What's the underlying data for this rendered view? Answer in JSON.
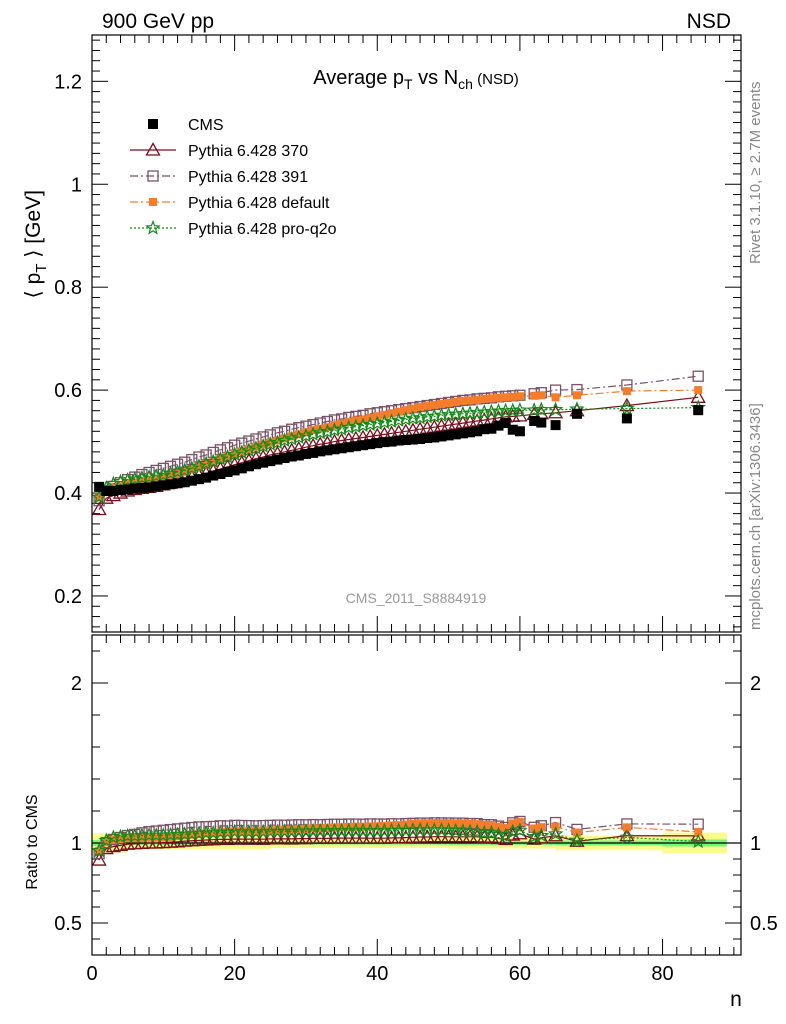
{
  "header": {
    "left": "900 GeV pp",
    "right": "NSD"
  },
  "side_labels": {
    "rivet": "Rivet 3.1.10, ≥ 2.7M events",
    "mcplots": "mcplots.cern.ch [arXiv:1306.3436]"
  },
  "chart_data": [
    {
      "type": "scatter",
      "title": "Average p_T vs N_ch (NSD)",
      "title_parts": {
        "a": "Average p",
        "a_sub": "T",
        "b": " vs N",
        "b_sub": "ch",
        "c": " (NSD)"
      },
      "ylabel": "⟨ p_T ⟩ [GeV]",
      "ylabel_parts": {
        "pre": "⟨ p",
        "sub": "T",
        "post": " ⟩ [GeV]"
      },
      "xlim": [
        0,
        91
      ],
      "ylim": [
        0.13,
        1.29
      ],
      "yticks": [
        0.2,
        0.4,
        0.6,
        0.8,
        1,
        1.2
      ],
      "ytick_labels": [
        "0.2",
        "0.4",
        "0.6",
        "0.8",
        "1",
        "1.2"
      ],
      "watermark": "CMS_2011_S8884919",
      "legend": "top-left",
      "series": [
        {
          "name": "CMS",
          "color": "#000000",
          "marker": "filled-square",
          "x": [
            1,
            2,
            3,
            4,
            5,
            6,
            7,
            8,
            9,
            10,
            11,
            12,
            13,
            14,
            15,
            16,
            17,
            18,
            19,
            20,
            21,
            22,
            23,
            24,
            25,
            26,
            27,
            28,
            29,
            30,
            31,
            32,
            33,
            34,
            35,
            36,
            37,
            38,
            39,
            40,
            41,
            42,
            43,
            44,
            45,
            46,
            47,
            48,
            49,
            50,
            51,
            52,
            53,
            54,
            55,
            56,
            57,
            58,
            59,
            60,
            62,
            63,
            65,
            68,
            75,
            85
          ],
          "y": [
            0.412,
            0.404,
            0.404,
            0.406,
            0.407,
            0.409,
            0.41,
            0.411,
            0.413,
            0.415,
            0.417,
            0.419,
            0.421,
            0.424,
            0.427,
            0.43,
            0.434,
            0.437,
            0.441,
            0.444,
            0.448,
            0.452,
            0.456,
            0.459,
            0.462,
            0.465,
            0.468,
            0.471,
            0.473,
            0.476,
            0.478,
            0.481,
            0.483,
            0.485,
            0.487,
            0.489,
            0.491,
            0.493,
            0.495,
            0.497,
            0.499,
            0.5,
            0.502,
            0.503,
            0.504,
            0.505,
            0.507,
            0.508,
            0.51,
            0.512,
            0.514,
            0.516,
            0.518,
            0.52,
            0.524,
            0.525,
            0.531,
            0.536,
            0.523,
            0.52,
            0.54,
            0.537,
            0.532,
            0.554,
            0.545,
            0.561
          ]
        },
        {
          "name": "Pythia 6.428 370",
          "color": "#7b0f1e",
          "marker": "open-triangle",
          "line": "solid",
          "x": [
            1,
            2,
            3,
            4,
            5,
            6,
            7,
            8,
            9,
            10,
            11,
            12,
            13,
            14,
            15,
            16,
            17,
            18,
            19,
            20,
            21,
            22,
            23,
            24,
            25,
            26,
            27,
            28,
            29,
            30,
            31,
            32,
            33,
            34,
            35,
            36,
            37,
            38,
            39,
            40,
            41,
            42,
            43,
            44,
            45,
            46,
            47,
            48,
            49,
            50,
            51,
            52,
            53,
            54,
            55,
            56,
            57,
            58,
            59,
            60,
            62,
            63,
            65,
            68,
            75,
            85
          ],
          "y": [
            0.368,
            0.39,
            0.395,
            0.4,
            0.404,
            0.407,
            0.409,
            0.411,
            0.413,
            0.416,
            0.419,
            0.422,
            0.426,
            0.43,
            0.434,
            0.438,
            0.443,
            0.447,
            0.451,
            0.455,
            0.459,
            0.463,
            0.467,
            0.47,
            0.474,
            0.477,
            0.48,
            0.483,
            0.486,
            0.489,
            0.492,
            0.495,
            0.497,
            0.5,
            0.502,
            0.504,
            0.506,
            0.508,
            0.51,
            0.512,
            0.514,
            0.516,
            0.518,
            0.52,
            0.522,
            0.524,
            0.526,
            0.528,
            0.53,
            0.532,
            0.534,
            0.536,
            0.538,
            0.54,
            0.542,
            0.544,
            0.546,
            0.548,
            0.549,
            0.55,
            0.553,
            0.554,
            0.556,
            0.56,
            0.57,
            0.586
          ]
        },
        {
          "name": "Pythia 6.428 391",
          "color": "#7a5268",
          "marker": "open-square",
          "line": "dash-dot",
          "x": [
            1,
            2,
            3,
            4,
            5,
            6,
            7,
            8,
            9,
            10,
            11,
            12,
            13,
            14,
            15,
            16,
            17,
            18,
            19,
            20,
            21,
            22,
            23,
            24,
            25,
            26,
            27,
            28,
            29,
            30,
            31,
            32,
            33,
            34,
            35,
            36,
            37,
            38,
            39,
            40,
            41,
            42,
            43,
            44,
            45,
            46,
            47,
            48,
            49,
            50,
            51,
            52,
            53,
            54,
            55,
            56,
            57,
            58,
            59,
            60,
            62,
            63,
            65,
            68,
            75,
            85
          ],
          "y": [
            0.385,
            0.405,
            0.413,
            0.42,
            0.426,
            0.431,
            0.436,
            0.44,
            0.444,
            0.448,
            0.452,
            0.456,
            0.46,
            0.465,
            0.47,
            0.474,
            0.479,
            0.484,
            0.488,
            0.493,
            0.497,
            0.501,
            0.505,
            0.509,
            0.513,
            0.517,
            0.52,
            0.524,
            0.527,
            0.53,
            0.533,
            0.536,
            0.539,
            0.542,
            0.544,
            0.547,
            0.549,
            0.551,
            0.554,
            0.556,
            0.558,
            0.56,
            0.562,
            0.564,
            0.566,
            0.568,
            0.57,
            0.572,
            0.574,
            0.576,
            0.578,
            0.58,
            0.581,
            0.583,
            0.584,
            0.585,
            0.587,
            0.588,
            0.589,
            0.59,
            0.593,
            0.595,
            0.6,
            0.601,
            0.61,
            0.627
          ]
        },
        {
          "name": "Pythia 6.428 default",
          "color": "#f47c2a",
          "marker": "filled-square-small",
          "line": "dash-dot",
          "x": [
            1,
            2,
            3,
            4,
            5,
            6,
            7,
            8,
            9,
            10,
            11,
            12,
            13,
            14,
            15,
            16,
            17,
            18,
            19,
            20,
            21,
            22,
            23,
            24,
            25,
            26,
            27,
            28,
            29,
            30,
            31,
            32,
            33,
            34,
            35,
            36,
            37,
            38,
            39,
            40,
            41,
            42,
            43,
            44,
            45,
            46,
            47,
            48,
            49,
            50,
            51,
            52,
            53,
            54,
            55,
            56,
            57,
            58,
            59,
            60,
            62,
            63,
            65,
            68,
            75,
            85
          ],
          "y": [
            0.392,
            0.406,
            0.412,
            0.416,
            0.419,
            0.421,
            0.423,
            0.425,
            0.427,
            0.43,
            0.433,
            0.437,
            0.441,
            0.446,
            0.451,
            0.456,
            0.461,
            0.466,
            0.471,
            0.476,
            0.481,
            0.485,
            0.49,
            0.494,
            0.498,
            0.502,
            0.506,
            0.51,
            0.514,
            0.518,
            0.522,
            0.525,
            0.528,
            0.532,
            0.535,
            0.538,
            0.541,
            0.543,
            0.546,
            0.549,
            0.552,
            0.555,
            0.558,
            0.561,
            0.564,
            0.567,
            0.569,
            0.571,
            0.573,
            0.575,
            0.577,
            0.579,
            0.58,
            0.581,
            0.583,
            0.584,
            0.585,
            0.586,
            0.587,
            0.588,
            0.589,
            0.59,
            0.586,
            0.59,
            0.598,
            0.6
          ]
        },
        {
          "name": "Pythia 6.428 pro-q2o",
          "color": "#138a18",
          "marker": "open-star",
          "line": "dotted",
          "x": [
            1,
            2,
            3,
            4,
            5,
            6,
            7,
            8,
            9,
            10,
            11,
            12,
            13,
            14,
            15,
            16,
            17,
            18,
            19,
            20,
            21,
            22,
            23,
            24,
            25,
            26,
            27,
            28,
            29,
            30,
            31,
            32,
            33,
            34,
            35,
            36,
            37,
            38,
            39,
            40,
            41,
            42,
            43,
            44,
            45,
            46,
            47,
            48,
            49,
            50,
            51,
            52,
            53,
            54,
            55,
            56,
            57,
            58,
            59,
            60,
            62,
            63,
            65,
            68,
            75,
            85
          ],
          "y": [
            0.392,
            0.41,
            0.418,
            0.422,
            0.425,
            0.427,
            0.429,
            0.431,
            0.433,
            0.435,
            0.438,
            0.441,
            0.444,
            0.448,
            0.452,
            0.457,
            0.461,
            0.466,
            0.47,
            0.475,
            0.479,
            0.483,
            0.487,
            0.491,
            0.495,
            0.498,
            0.502,
            0.505,
            0.508,
            0.511,
            0.514,
            0.517,
            0.519,
            0.522,
            0.524,
            0.527,
            0.529,
            0.531,
            0.533,
            0.535,
            0.537,
            0.539,
            0.541,
            0.543,
            0.545,
            0.546,
            0.548,
            0.549,
            0.551,
            0.552,
            0.553,
            0.554,
            0.555,
            0.556,
            0.557,
            0.558,
            0.559,
            0.56,
            0.56,
            0.561,
            0.561,
            0.562,
            0.562,
            0.563,
            0.564,
            0.566
          ]
        }
      ]
    },
    {
      "type": "scatter",
      "ylabel": "Ratio to CMS",
      "xlabel": "n",
      "xlim": [
        0,
        91
      ],
      "ylim": [
        0.3,
        2.3
      ],
      "xticks": [
        0,
        20,
        40,
        60,
        80
      ],
      "xtick_labels": [
        "0",
        "20",
        "40",
        "60",
        "80"
      ],
      "yticks": [
        0.5,
        1,
        2
      ],
      "ytick_labels": [
        "0.5",
        "1",
        "2"
      ],
      "reference_line": 1,
      "uncertainty_bands": {
        "green_color": "#74f774",
        "yellow_color": "#fbfa8c",
        "green_halfwidth": [
          0.018,
          0.012,
          0.01,
          0.012,
          0.016,
          0.022,
          0.045
        ],
        "yellow_halfwidth": [
          0.06,
          0.04,
          0.032,
          0.035,
          0.045,
          0.065,
          0.1
        ],
        "band_edges": [
          0,
          5,
          25,
          50,
          65,
          80,
          89
        ]
      }
    }
  ]
}
